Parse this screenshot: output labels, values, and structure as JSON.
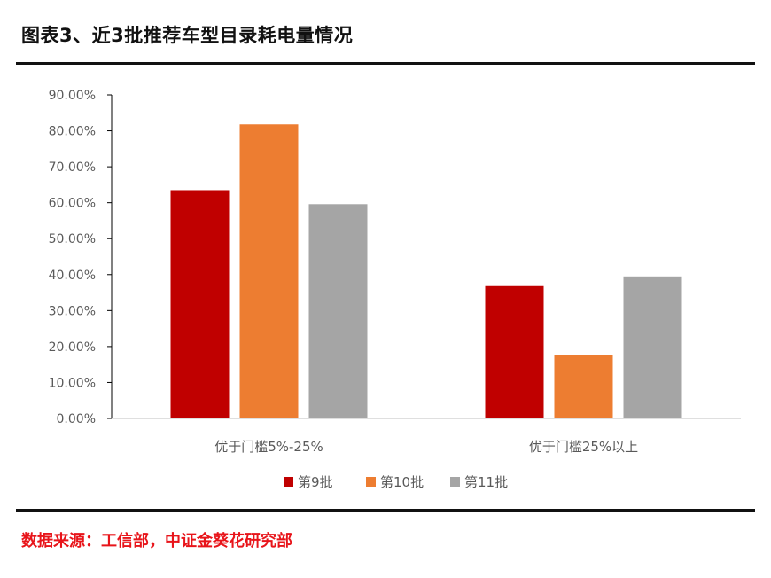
{
  "header": {
    "title": "图表3、近3批推荐车型目录耗电量情况"
  },
  "footer": {
    "source": "数据来源：工信部，中证金葵花研究部"
  },
  "chart_data": {
    "type": "bar",
    "title": "",
    "xlabel": "",
    "ylabel": "",
    "categories": [
      "优于门槛5%-25%",
      "优于门槛25%以上"
    ],
    "series": [
      {
        "name": "第9批",
        "color": "#c00000",
        "values": [
          0.635,
          0.368
        ]
      },
      {
        "name": "第10批",
        "color": "#ed7d31",
        "values": [
          0.818,
          0.176
        ]
      },
      {
        "name": "第11批",
        "color": "#a5a5a5",
        "values": [
          0.596,
          0.395
        ]
      }
    ],
    "ylim": [
      0,
      0.9
    ],
    "yticks": [
      0,
      0.1,
      0.2,
      0.3,
      0.4,
      0.5,
      0.6,
      0.7,
      0.8,
      0.9
    ],
    "ytick_labels": [
      "0.00%",
      "10.00%",
      "20.00%",
      "30.00%",
      "40.00%",
      "50.00%",
      "60.00%",
      "70.00%",
      "80.00%",
      "90.00%"
    ],
    "grid": false,
    "legend_position": "bottom"
  }
}
